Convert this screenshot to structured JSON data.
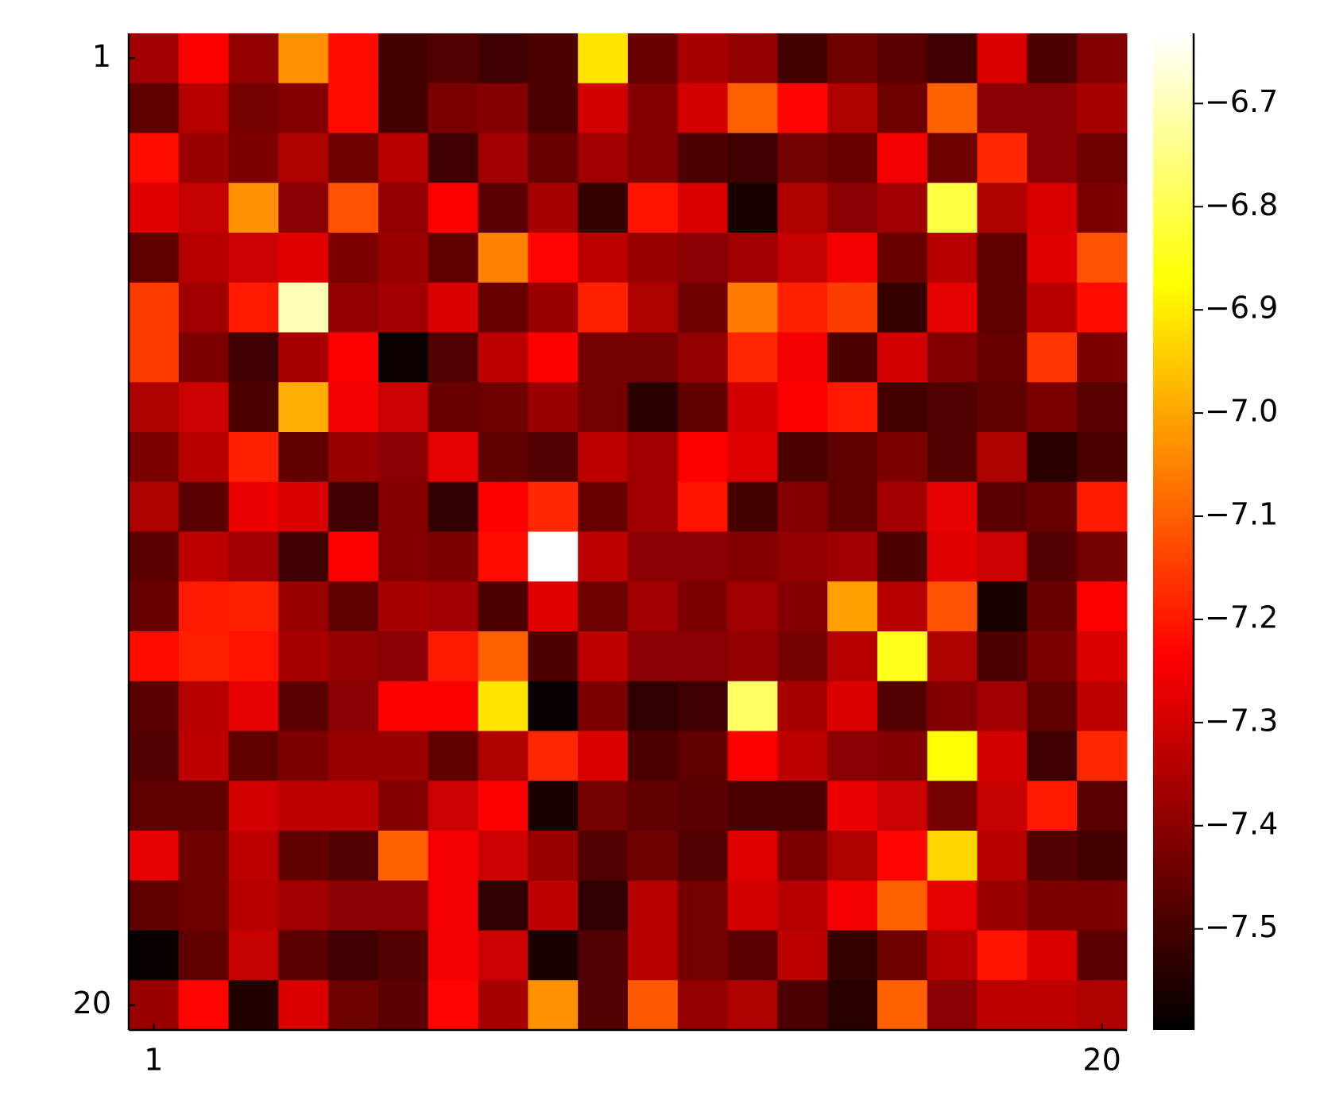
{
  "chart_data": {
    "type": "heatmap",
    "colormap": "hot",
    "xlim": [
      0.5,
      20.5
    ],
    "ylim": [
      0.5,
      20.5
    ],
    "yflip": true,
    "xticks": [
      1,
      20
    ],
    "yticks": [
      1,
      20
    ],
    "zlim": [
      -7.598,
      -6.632
    ],
    "zticks": [
      {
        "value": -6.7,
        "label": "−6.7"
      },
      {
        "value": -6.8,
        "label": "−6.8"
      },
      {
        "value": -6.9,
        "label": "−6.9"
      },
      {
        "value": -7.0,
        "label": "−7.0"
      },
      {
        "value": -7.1,
        "label": "−7.1"
      },
      {
        "value": -7.2,
        "label": "−7.2"
      },
      {
        "value": -7.3,
        "label": "−7.3"
      },
      {
        "value": -7.4,
        "label": "−7.4"
      },
      {
        "value": -7.5,
        "label": "−7.5"
      }
    ],
    "z": [
      [
        -7.37,
        -7.24,
        -7.39,
        -7.03,
        -7.22,
        -7.5,
        -7.48,
        -7.51,
        -7.49,
        -6.91,
        -7.45,
        -7.36,
        -7.39,
        -7.5,
        -7.44,
        -7.47,
        -7.51,
        -7.29,
        -7.49,
        -7.41
      ],
      [
        -7.46,
        -7.34,
        -7.43,
        -7.41,
        -7.22,
        -7.5,
        -7.42,
        -7.41,
        -7.49,
        -7.3,
        -7.41,
        -7.3,
        -7.1,
        -7.23,
        -7.35,
        -7.44,
        -7.1,
        -7.4,
        -7.4,
        -7.36
      ],
      [
        -7.22,
        -7.38,
        -7.42,
        -7.35,
        -7.44,
        -7.34,
        -7.51,
        -7.37,
        -7.45,
        -7.37,
        -7.41,
        -7.49,
        -7.51,
        -7.43,
        -7.45,
        -7.25,
        -7.44,
        -7.18,
        -7.4,
        -7.44
      ],
      [
        -7.28,
        -7.32,
        -7.03,
        -7.4,
        -7.12,
        -7.39,
        -7.24,
        -7.47,
        -7.36,
        -7.52,
        -7.21,
        -7.29,
        -7.56,
        -7.35,
        -7.4,
        -7.37,
        -6.81,
        -7.35,
        -7.29,
        -7.42
      ],
      [
        -7.46,
        -7.34,
        -7.31,
        -7.28,
        -7.42,
        -7.38,
        -7.46,
        -7.05,
        -7.23,
        -7.33,
        -7.38,
        -7.4,
        -7.37,
        -7.32,
        -7.25,
        -7.45,
        -7.34,
        -7.46,
        -7.28,
        -7.12
      ],
      [
        -7.15,
        -7.37,
        -7.2,
        -6.7,
        -7.39,
        -7.37,
        -7.29,
        -7.45,
        -7.38,
        -7.19,
        -7.35,
        -7.44,
        -7.06,
        -7.19,
        -7.15,
        -7.52,
        -7.27,
        -7.46,
        -7.34,
        -7.22
      ],
      [
        -7.15,
        -7.42,
        -7.51,
        -7.36,
        -7.24,
        -7.58,
        -7.48,
        -7.33,
        -7.24,
        -7.43,
        -7.43,
        -7.39,
        -7.18,
        -7.25,
        -7.49,
        -7.3,
        -7.41,
        -7.45,
        -7.16,
        -7.42
      ],
      [
        -7.35,
        -7.31,
        -7.49,
        -6.99,
        -7.25,
        -7.31,
        -7.45,
        -7.44,
        -7.38,
        -7.43,
        -7.54,
        -7.46,
        -7.3,
        -7.24,
        -7.2,
        -7.5,
        -7.48,
        -7.46,
        -7.42,
        -7.47
      ],
      [
        -7.42,
        -7.34,
        -7.19,
        -7.46,
        -7.38,
        -7.4,
        -7.27,
        -7.46,
        -7.48,
        -7.33,
        -7.37,
        -7.24,
        -7.28,
        -7.49,
        -7.46,
        -7.42,
        -7.48,
        -7.35,
        -7.54,
        -7.49
      ],
      [
        -7.35,
        -7.47,
        -7.26,
        -7.29,
        -7.51,
        -7.41,
        -7.53,
        -7.24,
        -7.18,
        -7.45,
        -7.37,
        -7.21,
        -7.5,
        -7.41,
        -7.46,
        -7.37,
        -7.27,
        -7.47,
        -7.45,
        -7.2
      ],
      [
        -7.47,
        -7.33,
        -7.37,
        -7.51,
        -7.24,
        -7.41,
        -7.42,
        -7.22,
        -6.63,
        -7.33,
        -7.4,
        -7.4,
        -7.41,
        -7.39,
        -7.37,
        -7.49,
        -7.28,
        -7.31,
        -7.48,
        -7.43
      ],
      [
        -7.45,
        -7.2,
        -7.19,
        -7.38,
        -7.46,
        -7.36,
        -7.37,
        -7.49,
        -7.28,
        -7.44,
        -7.37,
        -7.42,
        -7.37,
        -7.41,
        -7.01,
        -7.34,
        -7.12,
        -7.56,
        -7.45,
        -7.24
      ],
      [
        -7.22,
        -7.19,
        -7.21,
        -7.36,
        -7.39,
        -7.4,
        -7.2,
        -7.1,
        -7.49,
        -7.33,
        -7.4,
        -7.4,
        -7.39,
        -7.43,
        -7.34,
        -6.85,
        -7.35,
        -7.49,
        -7.42,
        -7.29
      ],
      [
        -7.47,
        -7.34,
        -7.27,
        -7.47,
        -7.4,
        -7.24,
        -7.24,
        -6.91,
        -7.59,
        -7.42,
        -7.53,
        -7.51,
        -6.78,
        -7.36,
        -7.29,
        -7.48,
        -7.41,
        -7.37,
        -7.46,
        -7.33
      ],
      [
        -7.48,
        -7.33,
        -7.46,
        -7.42,
        -7.38,
        -7.38,
        -7.46,
        -7.35,
        -7.18,
        -7.29,
        -7.49,
        -7.46,
        -7.24,
        -7.33,
        -7.4,
        -7.41,
        -6.87,
        -7.3,
        -7.51,
        -7.18
      ],
      [
        -7.46,
        -7.46,
        -7.3,
        -7.33,
        -7.33,
        -7.41,
        -7.31,
        -7.24,
        -7.56,
        -7.43,
        -7.46,
        -7.47,
        -7.49,
        -7.49,
        -7.26,
        -7.31,
        -7.43,
        -7.32,
        -7.2,
        -7.47
      ],
      [
        -7.27,
        -7.44,
        -7.33,
        -7.46,
        -7.48,
        -7.1,
        -7.25,
        -7.31,
        -7.38,
        -7.48,
        -7.44,
        -7.48,
        -7.28,
        -7.42,
        -7.35,
        -7.23,
        -6.93,
        -7.34,
        -7.48,
        -7.5
      ],
      [
        -7.46,
        -7.44,
        -7.34,
        -7.37,
        -7.4,
        -7.4,
        -7.25,
        -7.53,
        -7.33,
        -7.53,
        -7.34,
        -7.43,
        -7.3,
        -7.34,
        -7.25,
        -7.1,
        -7.27,
        -7.38,
        -7.42,
        -7.42
      ],
      [
        -7.59,
        -7.46,
        -7.32,
        -7.47,
        -7.51,
        -7.48,
        -7.25,
        -7.31,
        -7.56,
        -7.48,
        -7.34,
        -7.43,
        -7.47,
        -7.33,
        -7.52,
        -7.44,
        -7.34,
        -7.21,
        -7.29,
        -7.47
      ],
      [
        -7.38,
        -7.23,
        -7.55,
        -7.29,
        -7.44,
        -7.47,
        -7.23,
        -7.36,
        -7.03,
        -7.48,
        -7.11,
        -7.39,
        -7.35,
        -7.49,
        -7.54,
        -7.1,
        -7.4,
        -7.33,
        -7.33,
        -7.35
      ]
    ]
  }
}
